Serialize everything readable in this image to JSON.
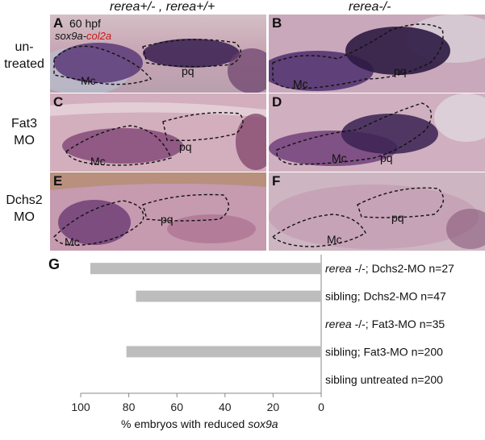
{
  "headers": {
    "left": "rerea+/- , rerea+/+",
    "right": "rerea-/-"
  },
  "row_labels": [
    {
      "line1": "un-",
      "line2": "treated"
    },
    {
      "line1": "Fat3",
      "line2": "MO"
    },
    {
      "line1": "Dchs2",
      "line2": "MO"
    }
  ],
  "panels": [
    {
      "letter": "A",
      "mc": "Mc",
      "pq": "pq",
      "hpf": "60 hpf",
      "stain_a": "sox9a",
      "stain_sep": "-",
      "stain_b": "col2a"
    },
    {
      "letter": "B",
      "mc": "Mc",
      "pq": "pq"
    },
    {
      "letter": "C",
      "mc": "Mc",
      "pq": "pq"
    },
    {
      "letter": "D",
      "mc": "Mc",
      "pq": "pq"
    },
    {
      "letter": "E",
      "mc": "Mc",
      "pq": "pq"
    },
    {
      "letter": "F",
      "mc": "Mc",
      "pq": "pq"
    }
  ],
  "colors": {
    "bar": "#bdbdbd",
    "tissue_pink": "#c98aa3",
    "stain_purple": "#4a2a62"
  },
  "chart_data": {
    "type": "bar",
    "orientation": "horizontal",
    "panel_letter": "G",
    "xaxis_reversed": true,
    "xlim": [
      0,
      100
    ],
    "xticks": [
      100,
      80,
      60,
      40,
      20,
      0
    ],
    "xlabel_prefix": "%  embryos with reduced ",
    "xlabel_gene": "sox9a",
    "categories": [
      {
        "italic": "rerea",
        "text": " -/-; Dchs2-MO n=27"
      },
      {
        "italic": "",
        "text": "sibling; Dchs2-MO n=47"
      },
      {
        "italic": "rerea",
        "text": " -/-; Fat3-MO n=35"
      },
      {
        "italic": "",
        "text": "sibling; Fat3-MO n=200"
      },
      {
        "italic": "",
        "text": "sibling untreated n=200"
      }
    ],
    "values": [
      96,
      77,
      0,
      81,
      0
    ]
  }
}
